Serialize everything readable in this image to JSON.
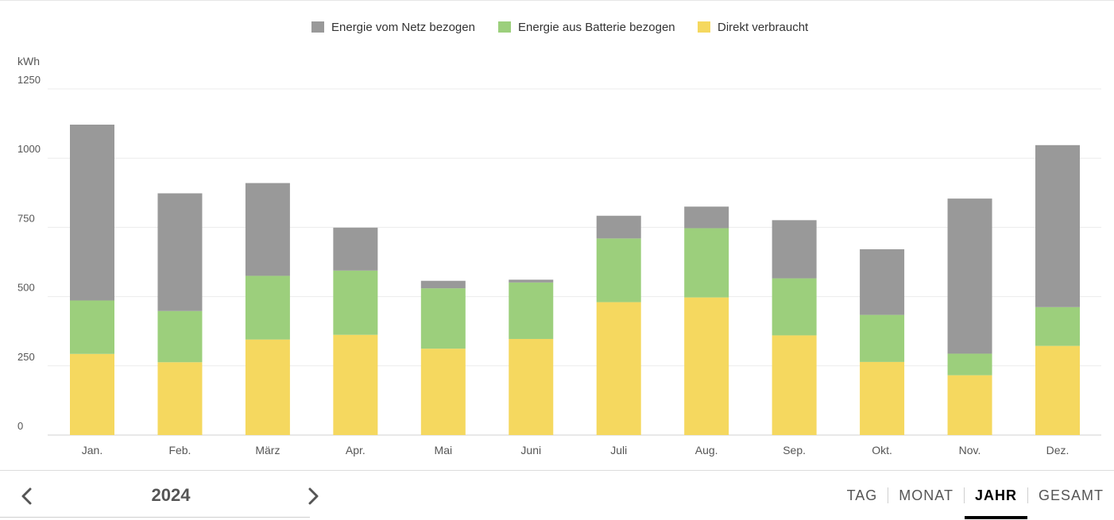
{
  "chart_data": {
    "type": "bar",
    "stacked": true,
    "unit_label": "kWh",
    "categories": [
      "Jan.",
      "Feb.",
      "März",
      "Apr.",
      "Mai",
      "Juni",
      "Juli",
      "Aug.",
      "Sep.",
      "Okt.",
      "Nov.",
      "Dez."
    ],
    "series": [
      {
        "name": "Direkt verbraucht",
        "color": "#f5d85f",
        "values": [
          293,
          263,
          345,
          362,
          312,
          347,
          480,
          497,
          360,
          264,
          216,
          322
        ]
      },
      {
        "name": "Energie aus Batterie bezogen",
        "color": "#9ccf7c",
        "values": [
          193,
          185,
          230,
          232,
          218,
          204,
          230,
          250,
          206,
          170,
          78,
          140
        ]
      },
      {
        "name": "Energie vom Netz bezogen",
        "color": "#999999",
        "values": [
          635,
          425,
          335,
          155,
          27,
          10,
          82,
          78,
          210,
          237,
          560,
          585
        ]
      }
    ],
    "legend_order": [
      "Energie vom Netz bezogen",
      "Energie aus Batterie bezogen",
      "Direkt verbraucht"
    ],
    "yticks": [
      0,
      250,
      500,
      750,
      1000,
      1250
    ],
    "ylim": [
      0,
      1250
    ],
    "grid": true,
    "legend_position": "top-center"
  },
  "nav": {
    "prev_icon": "chevron-left-icon",
    "next_icon": "chevron-right-icon",
    "year": "2024"
  },
  "tabs": [
    {
      "label": "TAG",
      "active": false
    },
    {
      "label": "MONAT",
      "active": false
    },
    {
      "label": "JAHR",
      "active": true
    },
    {
      "label": "GESAMT",
      "active": false
    }
  ]
}
